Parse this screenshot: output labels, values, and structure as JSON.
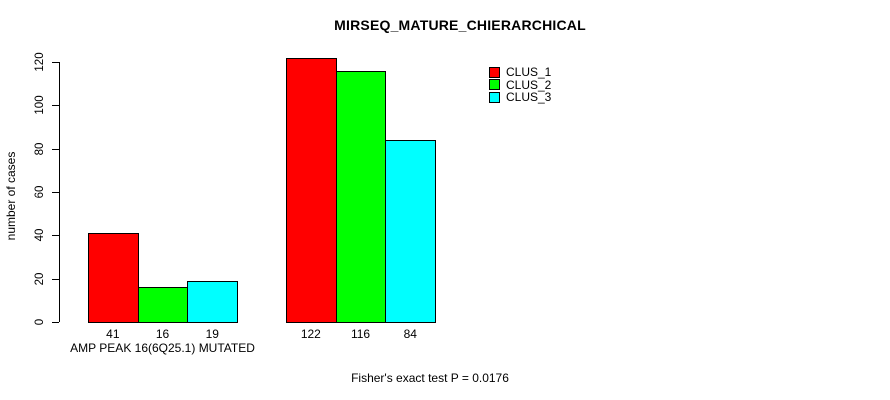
{
  "chart_data": {
    "type": "bar",
    "title": "MIRSEQ_MATURE_CHIERARCHICAL",
    "ylabel": "number of cases",
    "xlabel": "",
    "ylim": [
      0,
      120
    ],
    "yticks": [
      0,
      20,
      40,
      60,
      80,
      100,
      120
    ],
    "grid": false,
    "legend_position": "top-right",
    "series": [
      {
        "name": "CLUS_1",
        "color": "#ff0000"
      },
      {
        "name": "CLUS_2",
        "color": "#00ff00"
      },
      {
        "name": "CLUS_3",
        "color": "#00ffff"
      }
    ],
    "groups": [
      {
        "label": "AMP PEAK 16(6Q25.1) MUTATED",
        "values": [
          41,
          16,
          19
        ]
      },
      {
        "label": "",
        "values": [
          122,
          116,
          84
        ]
      }
    ],
    "bar_value_labels": [
      [
        "41",
        "16",
        "19"
      ],
      [
        "122",
        "116",
        "84"
      ]
    ],
    "annotation": "Fisher's exact test P = 0.0176",
    "colors": {
      "bar_border": "#000000",
      "axis": "#000000",
      "background": "#ffffff",
      "text": "#000000"
    }
  }
}
